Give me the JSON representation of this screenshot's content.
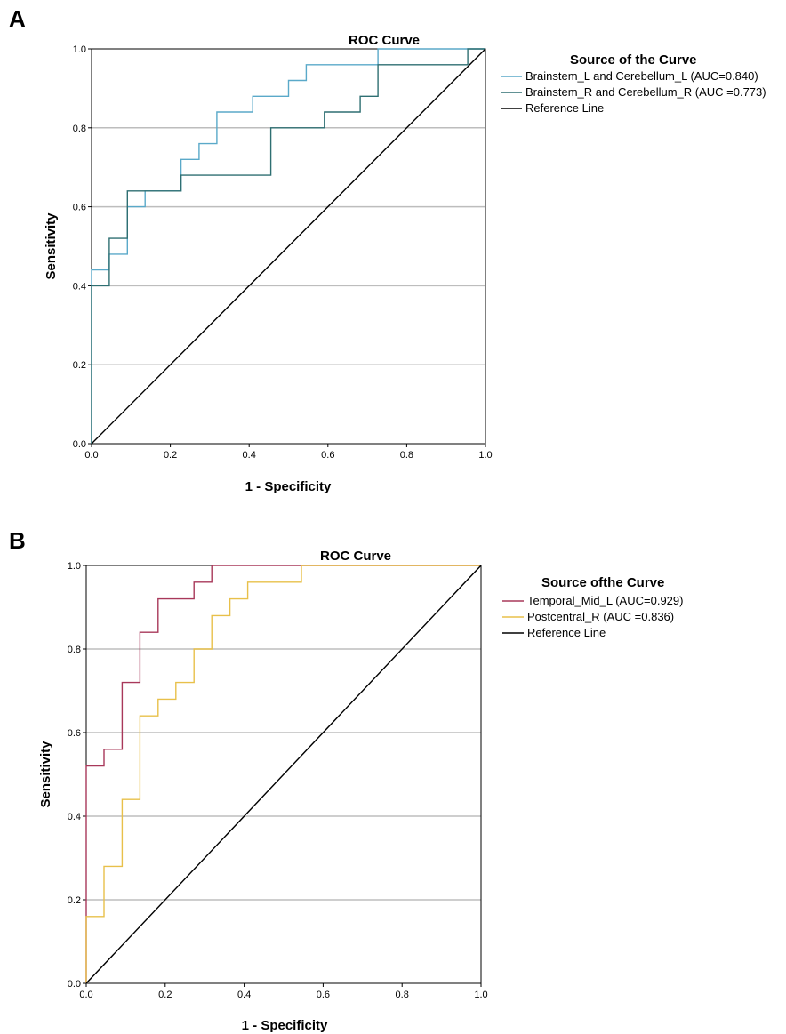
{
  "chart_data": [
    {
      "panel_label": "A",
      "type": "line",
      "title": "ROC Curve",
      "xlabel": "1 - Specificity",
      "ylabel": "Sensitivity",
      "xlim": [
        0,
        1
      ],
      "ylim": [
        0,
        1
      ],
      "xticks": [
        "0.0",
        "0.2",
        "0.4",
        "0.6",
        "0.8",
        "1.0"
      ],
      "yticks": [
        "0.0",
        "0.2",
        "0.4",
        "0.6",
        "0.8",
        "1.0"
      ],
      "grid": "horizontal",
      "legend": {
        "title": "Source of the Curve",
        "placement": "right",
        "entries": [
          "Brainstem_L and Cerebellum_L (AUC=0.840)",
          "Brainstem_R and Cerebellum_R (AUC =0.773)",
          "Reference Line"
        ]
      },
      "series": [
        {
          "name": "Brainstem_L and Cerebellum_L (AUC=0.840)",
          "color": "#5aa9c9",
          "points": [
            [
              0,
              0
            ],
            [
              0,
              0.44
            ],
            [
              0.045,
              0.44
            ],
            [
              0.045,
              0.48
            ],
            [
              0.091,
              0.48
            ],
            [
              0.091,
              0.6
            ],
            [
              0.136,
              0.6
            ],
            [
              0.136,
              0.64
            ],
            [
              0.227,
              0.64
            ],
            [
              0.227,
              0.72
            ],
            [
              0.273,
              0.72
            ],
            [
              0.273,
              0.76
            ],
            [
              0.318,
              0.76
            ],
            [
              0.318,
              0.84
            ],
            [
              0.409,
              0.84
            ],
            [
              0.409,
              0.88
            ],
            [
              0.5,
              0.88
            ],
            [
              0.5,
              0.92
            ],
            [
              0.545,
              0.92
            ],
            [
              0.545,
              0.96
            ],
            [
              0.727,
              0.96
            ],
            [
              0.727,
              1.0
            ],
            [
              1,
              1
            ]
          ]
        },
        {
          "name": "Brainstem_R and Cerebellum_R (AUC =0.773)",
          "color": "#2e6f72",
          "points": [
            [
              0,
              0
            ],
            [
              0,
              0.4
            ],
            [
              0.045,
              0.4
            ],
            [
              0.045,
              0.52
            ],
            [
              0.091,
              0.52
            ],
            [
              0.091,
              0.64
            ],
            [
              0.227,
              0.64
            ],
            [
              0.227,
              0.68
            ],
            [
              0.455,
              0.68
            ],
            [
              0.455,
              0.8
            ],
            [
              0.591,
              0.8
            ],
            [
              0.591,
              0.84
            ],
            [
              0.682,
              0.84
            ],
            [
              0.682,
              0.88
            ],
            [
              0.727,
              0.88
            ],
            [
              0.727,
              0.96
            ],
            [
              0.955,
              0.96
            ],
            [
              0.955,
              1.0
            ],
            [
              1,
              1
            ]
          ]
        },
        {
          "name": "Reference Line",
          "color": "#000000",
          "points": [
            [
              0,
              0
            ],
            [
              1,
              1
            ]
          ]
        }
      ]
    },
    {
      "panel_label": "B",
      "type": "line",
      "title": "ROC Curve",
      "xlabel": "1 - Specificity",
      "ylabel": "Sensitivity",
      "xlim": [
        0,
        1
      ],
      "ylim": [
        0,
        1
      ],
      "xticks": [
        "0.0",
        "0.2",
        "0.4",
        "0.6",
        "0.8",
        "1.0"
      ],
      "yticks": [
        "0.0",
        "0.2",
        "0.4",
        "0.6",
        "0.8",
        "1.0"
      ],
      "grid": "horizontal",
      "legend": {
        "title": "Source ofthe Curve",
        "placement": "right",
        "entries": [
          "Temporal_Mid_L (AUC=0.929)",
          "Postcentral_R (AUC =0.836)",
          "Reference Line"
        ]
      },
      "series": [
        {
          "name": "Temporal_Mid_L (AUC=0.929)",
          "color": "#a8385a",
          "points": [
            [
              0,
              0
            ],
            [
              0,
              0.52
            ],
            [
              0.045,
              0.52
            ],
            [
              0.045,
              0.56
            ],
            [
              0.091,
              0.56
            ],
            [
              0.091,
              0.72
            ],
            [
              0.136,
              0.72
            ],
            [
              0.136,
              0.84
            ],
            [
              0.182,
              0.84
            ],
            [
              0.182,
              0.92
            ],
            [
              0.273,
              0.92
            ],
            [
              0.273,
              0.96
            ],
            [
              0.318,
              0.96
            ],
            [
              0.318,
              1.0
            ],
            [
              1,
              1
            ]
          ]
        },
        {
          "name": "Postcentral_R (AUC =0.836)",
          "color": "#e8c04a",
          "points": [
            [
              0,
              0
            ],
            [
              0,
              0.16
            ],
            [
              0.045,
              0.16
            ],
            [
              0.045,
              0.28
            ],
            [
              0.091,
              0.28
            ],
            [
              0.091,
              0.44
            ],
            [
              0.136,
              0.44
            ],
            [
              0.136,
              0.64
            ],
            [
              0.182,
              0.64
            ],
            [
              0.182,
              0.68
            ],
            [
              0.227,
              0.68
            ],
            [
              0.227,
              0.72
            ],
            [
              0.273,
              0.72
            ],
            [
              0.273,
              0.8
            ],
            [
              0.318,
              0.8
            ],
            [
              0.318,
              0.88
            ],
            [
              0.364,
              0.88
            ],
            [
              0.364,
              0.92
            ],
            [
              0.409,
              0.92
            ],
            [
              0.409,
              0.96
            ],
            [
              0.545,
              0.96
            ],
            [
              0.545,
              1.0
            ],
            [
              1,
              1
            ]
          ]
        },
        {
          "name": "Reference Line",
          "color": "#000000",
          "points": [
            [
              0,
              0
            ],
            [
              1,
              1
            ]
          ]
        }
      ]
    }
  ]
}
